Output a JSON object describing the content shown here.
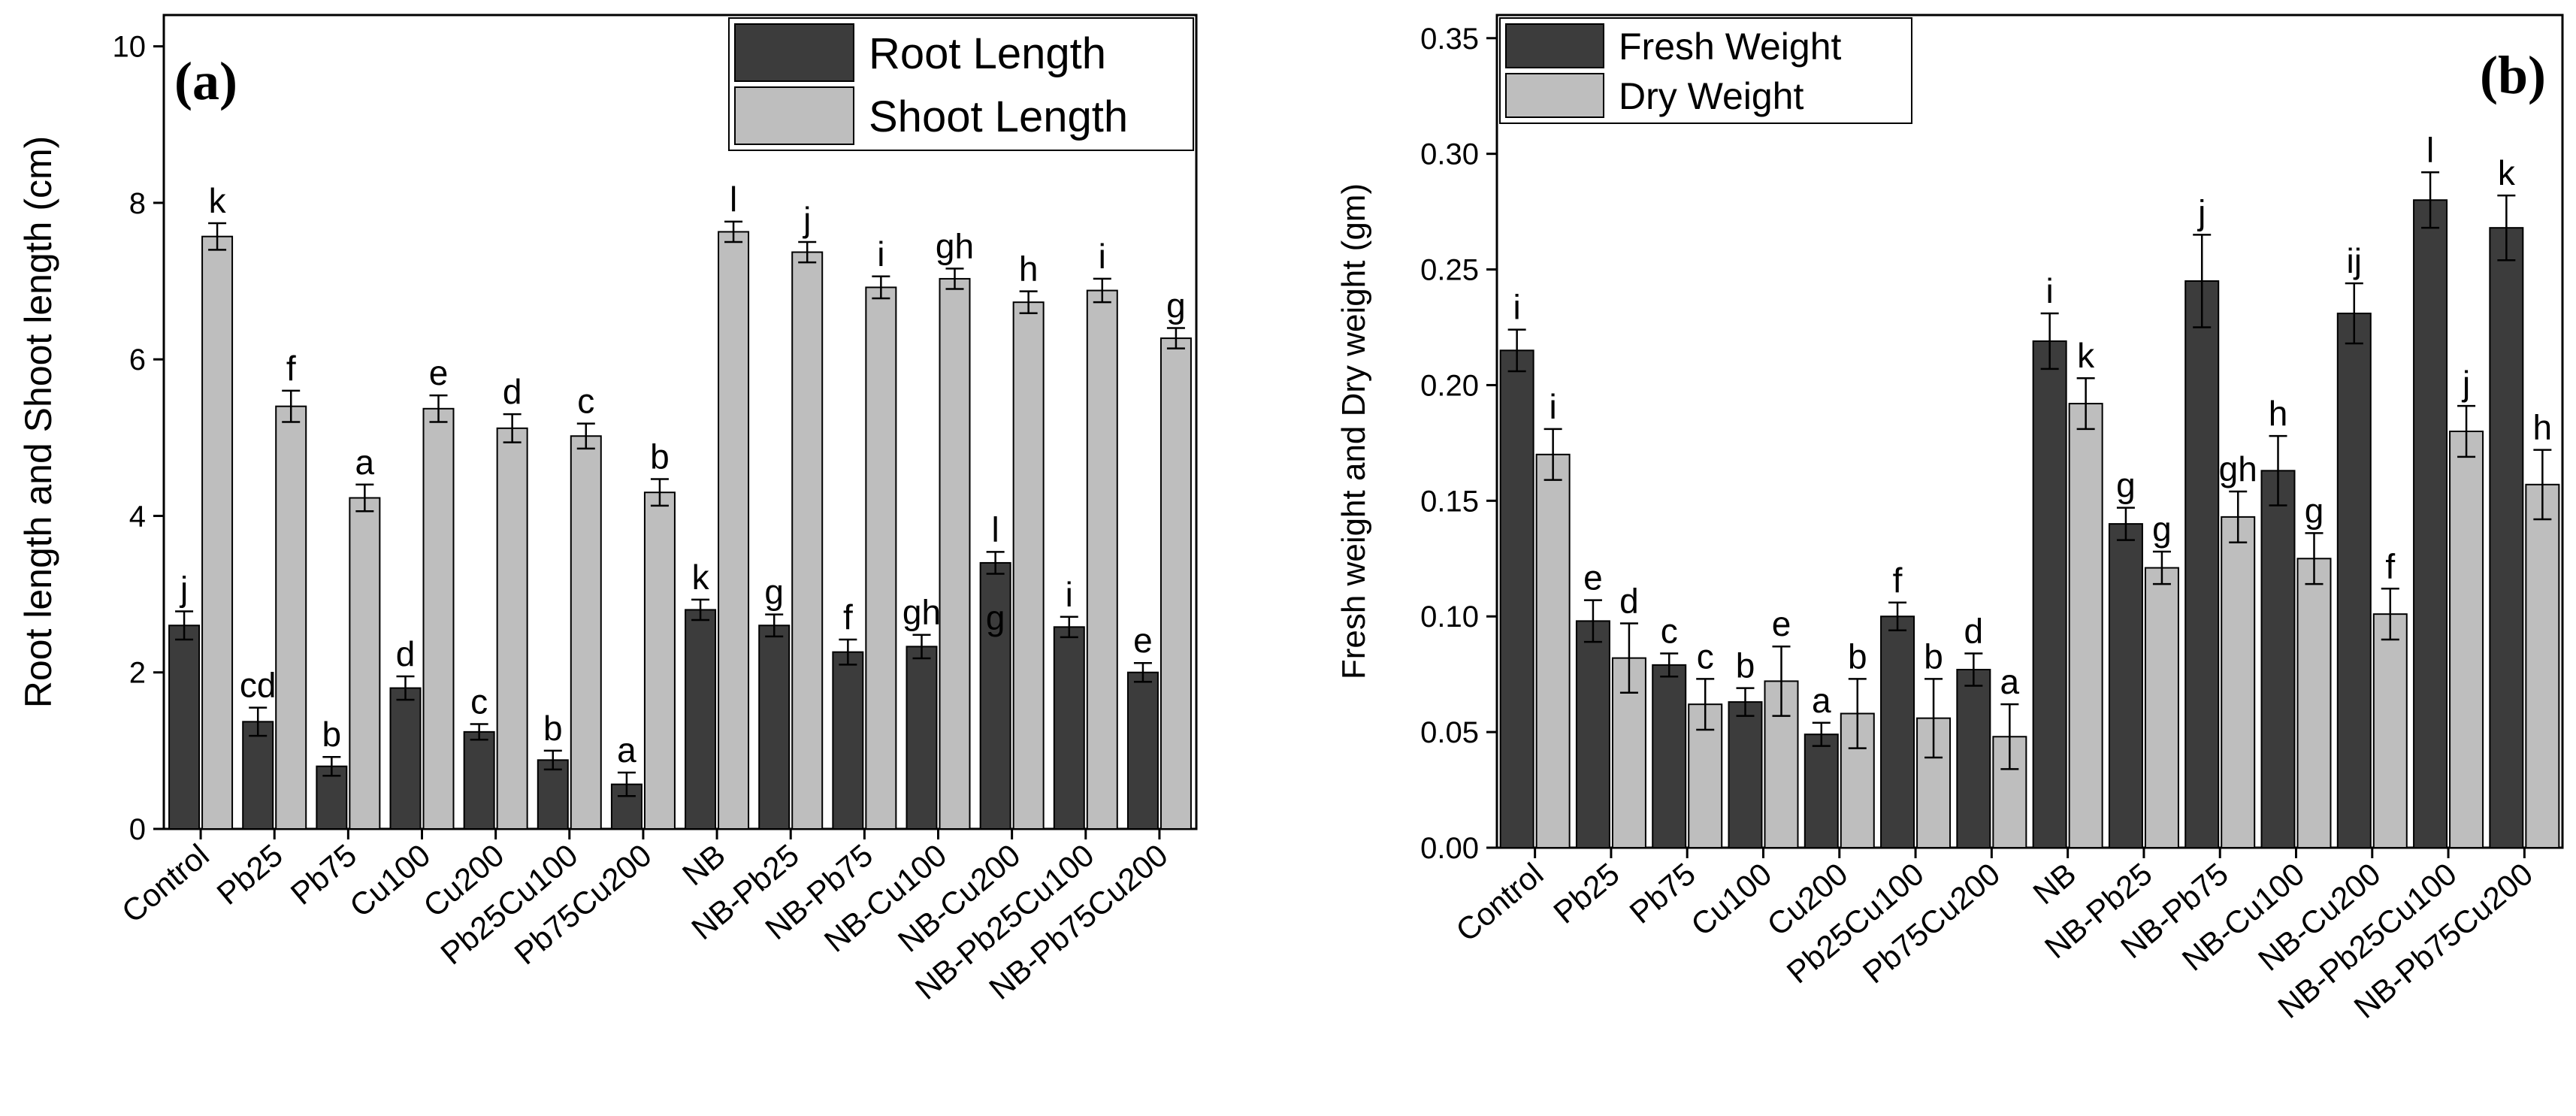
{
  "chart_data": [
    {
      "panel_label": "(a)",
      "type": "bar",
      "ylabel": "Root length and Shoot length (cm)",
      "xlabel": "",
      "ylim": [
        0,
        10.4
      ],
      "yticks": [
        0,
        2,
        4,
        6,
        8,
        10
      ],
      "ytick_labels": [
        "0",
        "2",
        "4",
        "6",
        "8",
        "10"
      ],
      "legend_position": "top-right",
      "categories": [
        "Control",
        "Pb25",
        "Pb75",
        "Cu100",
        "Cu200",
        "Pb25Cu100",
        "Pb75Cu200",
        "NB",
        "NB-Pb25",
        "NB-Pb75",
        "NB-Cu100",
        "NB-Cu200",
        "NB-Pb25Cu100",
        "NB-Pb75Cu200"
      ],
      "series": [
        {
          "name": "Root Length",
          "color": "#3c3c3c",
          "values": [
            2.6,
            1.37,
            0.8,
            1.8,
            1.24,
            0.88,
            0.57,
            2.8,
            2.6,
            2.26,
            2.33,
            3.4,
            2.58,
            2.0
          ],
          "errors": [
            0.18,
            0.18,
            0.12,
            0.15,
            0.1,
            0.12,
            0.15,
            0.13,
            0.14,
            0.16,
            0.15,
            0.14,
            0.13,
            0.12
          ],
          "labels": [
            "j",
            "cd",
            "b",
            "d",
            "c",
            "b",
            "a",
            "k",
            "g",
            "f",
            "gh",
            "l",
            "i",
            "e"
          ]
        },
        {
          "name": "Shoot Length",
          "color": "#bebebe",
          "values": [
            7.57,
            5.4,
            4.23,
            5.37,
            5.12,
            5.02,
            4.3,
            7.63,
            7.37,
            6.92,
            7.03,
            6.73,
            6.88,
            6.27
          ],
          "errors": [
            0.17,
            0.2,
            0.17,
            0.17,
            0.18,
            0.16,
            0.17,
            0.13,
            0.13,
            0.14,
            0.13,
            0.14,
            0.15,
            0.13
          ],
          "labels": [
            "k",
            "f",
            "a",
            "e",
            "d",
            "c",
            "b",
            "l",
            "j",
            "i",
            "gh",
            "h",
            "i",
            "g"
          ]
        }
      ],
      "annotations": [
        {
          "text": "g",
          "category": "NB-Cu200",
          "y": 2.7
        }
      ]
    },
    {
      "panel_label": "(b)",
      "type": "bar",
      "ylabel": "Fresh weight and Dry weight (gm)",
      "xlabel": "",
      "ylim": [
        0,
        0.36
      ],
      "yticks": [
        0,
        0.05,
        0.1,
        0.15,
        0.2,
        0.25,
        0.3,
        0.35
      ],
      "ytick_labels": [
        "0.00",
        "0.05",
        "0.10",
        "0.15",
        "0.20",
        "0.25",
        "0.30",
        "0.35"
      ],
      "legend_position": "top-left",
      "categories": [
        "Control",
        "Pb25",
        "Pb75",
        "Cu100",
        "Cu200",
        "Pb25Cu100",
        "Pb75Cu200",
        "NB",
        "NB-Pb25",
        "NB-Pb75",
        "NB-Cu100",
        "NB-Cu200",
        "NB-Pb25Cu100",
        "NB-Pb75Cu200"
      ],
      "series": [
        {
          "name": "Fresh Weight",
          "color": "#3c3c3c",
          "values": [
            0.215,
            0.098,
            0.079,
            0.063,
            0.049,
            0.1,
            0.077,
            0.219,
            0.14,
            0.245,
            0.163,
            0.231,
            0.28,
            0.268
          ],
          "errors": [
            0.009,
            0.009,
            0.005,
            0.006,
            0.005,
            0.006,
            0.007,
            0.012,
            0.007,
            0.02,
            0.015,
            0.013,
            0.012,
            0.014
          ],
          "labels": [
            "i",
            "e",
            "c",
            "b",
            "a",
            "f",
            "d",
            "i",
            "g",
            "j",
            "h",
            "ij",
            "l",
            "k"
          ]
        },
        {
          "name": "Dry Weight",
          "color": "#bebebe",
          "values": [
            0.17,
            0.082,
            0.062,
            0.072,
            0.058,
            0.056,
            0.048,
            0.192,
            0.121,
            0.143,
            0.125,
            0.101,
            0.18,
            0.157
          ],
          "errors": [
            0.011,
            0.015,
            0.011,
            0.015,
            0.015,
            0.017,
            0.014,
            0.011,
            0.007,
            0.011,
            0.011,
            0.011,
            0.011,
            0.015
          ],
          "labels": [
            "i",
            "d",
            "c",
            "e",
            "b",
            "b",
            "a",
            "k",
            "g",
            "gh",
            "g",
            "f",
            "j",
            "h"
          ]
        }
      ],
      "annotations": []
    }
  ]
}
